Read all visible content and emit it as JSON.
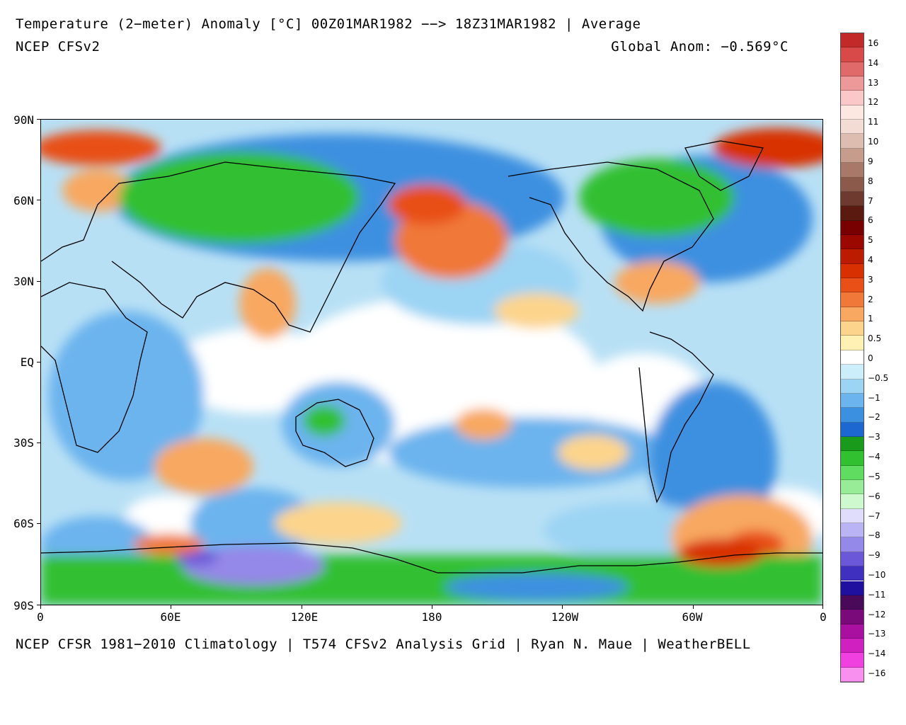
{
  "header": {
    "title": "Temperature (2−meter) Anomaly  [°C] 00Z01MAR1982 −−> 18Z31MAR1982 | Average",
    "model": "NCEP CFSv2",
    "global_anomaly": "Global Anom: −0.569°C"
  },
  "footer": {
    "credits": "NCEP CFSR 1981−2010 Climatology | T574 CFSv2 Analysis Grid | Ryan N. Maue | WeatherBELL"
  },
  "map": {
    "projection": "equirectangular",
    "lat_labels": [
      "90N",
      "60N",
      "30N",
      "EQ",
      "30S",
      "60S",
      "90S"
    ],
    "lon_labels": [
      "0",
      "60E",
      "120E",
      "180",
      "120W",
      "60W",
      "0"
    ],
    "ocean_background_color": "#b8e0f5",
    "coastline_color": "#000000"
  },
  "colorbar": {
    "labels": [
      "16",
      "14",
      "13",
      "12",
      "11",
      "10",
      "9",
      "8",
      "7",
      "6",
      "5",
      "4",
      "3",
      "2",
      "1",
      "0.5",
      "0",
      "−0.5",
      "−1",
      "−2",
      "−3",
      "−4",
      "−5",
      "−6",
      "−7",
      "−8",
      "−9",
      "−10",
      "−11",
      "−12",
      "−13",
      "−14",
      "−16"
    ],
    "colors": [
      "#c22a2a",
      "#d84a4a",
      "#e06a6a",
      "#ee9999",
      "#fac8c8",
      "#fce8e0",
      "#f3dcd3",
      "#ddbdb0",
      "#c69c8c",
      "#a87868",
      "#8c5a4a",
      "#6e3a30",
      "#5a1a10",
      "#780000",
      "#9a0800",
      "#bb1c00",
      "#d83000",
      "#e85018",
      "#f07838",
      "#f8a860",
      "#fcd48c",
      "#fff0b4",
      "#ffffff",
      "#cceefa",
      "#9cd4f4",
      "#6cb4ee",
      "#3c90e0",
      "#1c68d0",
      "#1a9a1a",
      "#30c030",
      "#60dc60",
      "#98ec98",
      "#cef8ce",
      "#e0dcfc",
      "#bab4f4",
      "#9488e8",
      "#6a58d8",
      "#4030c0",
      "#2010a0",
      "#4a0a5a",
      "#7a0a7a",
      "#aa10a0",
      "#d020c0",
      "#f040e0",
      "#f890f0"
    ]
  }
}
